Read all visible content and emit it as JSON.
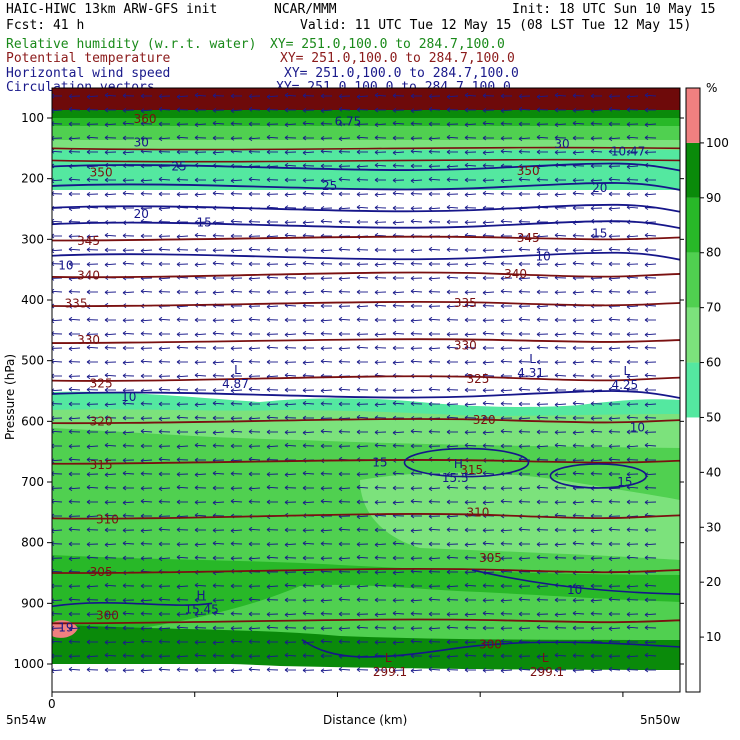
{
  "header": {
    "title_left": "HAIC-HIWC 13km ARW-GFS init",
    "org": "NCAR/MMM",
    "init": "Init: 18 UTC Sun 10 May 15",
    "fcst": "Fcst:   41 h",
    "valid": "Valid: 11 UTC Tue 12 May 15 (08 LST Tue 12 May 15)",
    "fields": [
      {
        "name": "Relative humidity (w.r.t. water)",
        "xy": "XY= 251.0,100.0 to 284.7,100.0",
        "color": "#1a8a1a"
      },
      {
        "name": "Potential temperature",
        "xy": "XY= 251.0,100.0 to 284.7,100.0",
        "color": "#8b1a1a"
      },
      {
        "name": "Horizontal wind speed",
        "xy": "XY= 251.0,100.0 to 284.7,100.0",
        "color": "#1a1a8b"
      },
      {
        "name": "Circulation vectors",
        "xy": "XY= 251.0,100.0 to 284.7,100.0",
        "color": "#1a1a8b"
      }
    ]
  },
  "chart_data": {
    "type": "heatmap",
    "xlabel": "Distance (km)",
    "ylabel": "Pressure (hPa)",
    "x_start_tick": "0",
    "x_left_label": "5n54w",
    "x_right_label": "5n50w",
    "y_ticks": [
      100,
      200,
      300,
      400,
      500,
      600,
      700,
      800,
      900,
      1000
    ],
    "colorbar": {
      "unit": "%",
      "ticks": [
        10,
        20,
        30,
        40,
        50,
        60,
        70,
        80,
        90,
        100
      ],
      "bins": [
        {
          "from": 0,
          "to": 50,
          "color": "#ffffff"
        },
        {
          "from": 50,
          "to": 60,
          "color": "#54e8a0"
        },
        {
          "from": 60,
          "to": 70,
          "color": "#7ce27c"
        },
        {
          "from": 70,
          "to": 80,
          "color": "#50d050"
        },
        {
          "from": 80,
          "to": 90,
          "color": "#28b828"
        },
        {
          "from": 90,
          "to": 100,
          "color": "#0a8a0a"
        },
        {
          "from": 100,
          "to": 110,
          "color": "#f08080"
        }
      ]
    },
    "theta_contours": [
      {
        "value": 300,
        "p": 928
      },
      {
        "value": 305,
        "p": 845
      },
      {
        "value": 310,
        "p": 755
      },
      {
        "value": 315,
        "p": 665
      },
      {
        "value": 320,
        "p": 598
      },
      {
        "value": 325,
        "p": 528
      },
      {
        "value": 330,
        "p": 466
      },
      {
        "value": 335,
        "p": 405
      },
      {
        "value": 340,
        "p": 357
      },
      {
        "value": 345,
        "p": 297
      }
    ],
    "theta_labels": [
      {
        "text": "300",
        "x": 0.07,
        "p": 920
      },
      {
        "text": "300",
        "x": 0.68,
        "p": 968
      },
      {
        "text": "305",
        "x": 0.06,
        "p": 848
      },
      {
        "text": "305",
        "x": 0.68,
        "p": 825
      },
      {
        "text": "310",
        "x": 0.07,
        "p": 762
      },
      {
        "text": "310",
        "x": 0.66,
        "p": 750
      },
      {
        "text": "315",
        "x": 0.06,
        "p": 672
      },
      {
        "text": "315",
        "x": 0.65,
        "p": 680
      },
      {
        "text": "320",
        "x": 0.06,
        "p": 600
      },
      {
        "text": "320",
        "x": 0.67,
        "p": 598
      },
      {
        "text": "325",
        "x": 0.06,
        "p": 538
      },
      {
        "text": "325",
        "x": 0.66,
        "p": 530
      },
      {
        "text": "330",
        "x": 0.04,
        "p": 466
      },
      {
        "text": "330",
        "x": 0.64,
        "p": 475
      },
      {
        "text": "335",
        "x": 0.02,
        "p": 406
      },
      {
        "text": "335",
        "x": 0.64,
        "p": 405
      },
      {
        "text": "340",
        "x": 0.04,
        "p": 360
      },
      {
        "text": "340",
        "x": 0.72,
        "p": 357
      },
      {
        "text": "345",
        "x": 0.04,
        "p": 303
      },
      {
        "text": "345",
        "x": 0.74,
        "p": 298
      },
      {
        "text": "350",
        "x": 0.74,
        "p": 187
      },
      {
        "text": "350",
        "x": 0.06,
        "p": 190
      },
      {
        "text": "360",
        "x": 0.13,
        "p": 102
      }
    ],
    "speed_contours": [
      {
        "value": 10,
        "p": 555
      },
      {
        "value": 10,
        "p": 327
      },
      {
        "value": 15,
        "p": 275
      },
      {
        "value": 20,
        "p": 248
      },
      {
        "value": 25,
        "p": 212
      },
      {
        "value": 25,
        "p": 180
      }
    ],
    "speed_labels": [
      {
        "text": "10",
        "x": 0.11,
        "p": 560
      },
      {
        "text": "10",
        "x": 0.92,
        "p": 610
      },
      {
        "text": "10",
        "x": 0.01,
        "p": 343
      },
      {
        "text": "10",
        "x": 0.77,
        "p": 328
      },
      {
        "text": "10",
        "x": 0.82,
        "p": 878
      },
      {
        "text": "15",
        "x": 0.23,
        "p": 272
      },
      {
        "text": "15",
        "x": 0.86,
        "p": 290
      },
      {
        "text": "15",
        "x": 0.51,
        "p": 668
      },
      {
        "text": "15",
        "x": 0.9,
        "p": 700
      },
      {
        "text": "20",
        "x": 0.13,
        "p": 258
      },
      {
        "text": "20",
        "x": 0.86,
        "p": 215
      },
      {
        "text": "25",
        "x": 0.19,
        "p": 180
      },
      {
        "text": "25",
        "x": 0.43,
        "p": 212
      },
      {
        "text": "30",
        "x": 0.13,
        "p": 140
      },
      {
        "text": "30",
        "x": 0.8,
        "p": 143
      },
      {
        "text": "19",
        "x": 0.01,
        "p": 940
      },
      {
        "text": "6.75",
        "x": 0.45,
        "p": 106
      },
      {
        "text": "10.47",
        "x": 0.89,
        "p": 155
      }
    ],
    "extrema": [
      {
        "sym": "L",
        "value": "4.87",
        "x": 0.29,
        "p": 525
      },
      {
        "sym": "L",
        "value": "4.31",
        "x": 0.76,
        "p": 507
      },
      {
        "sym": "L",
        "value": "4.25",
        "x": 0.91,
        "p": 527
      },
      {
        "sym": "H",
        "value": "15.5",
        "x": 0.64,
        "p": 680
      },
      {
        "sym": "H",
        "value": "15.45",
        "x": 0.23,
        "p": 897
      },
      {
        "sym": "L",
        "value": "299.1",
        "x": 0.53,
        "p": 1000
      },
      {
        "sym": "L",
        "value": "299.1",
        "x": 0.78,
        "p": 1000
      }
    ]
  }
}
